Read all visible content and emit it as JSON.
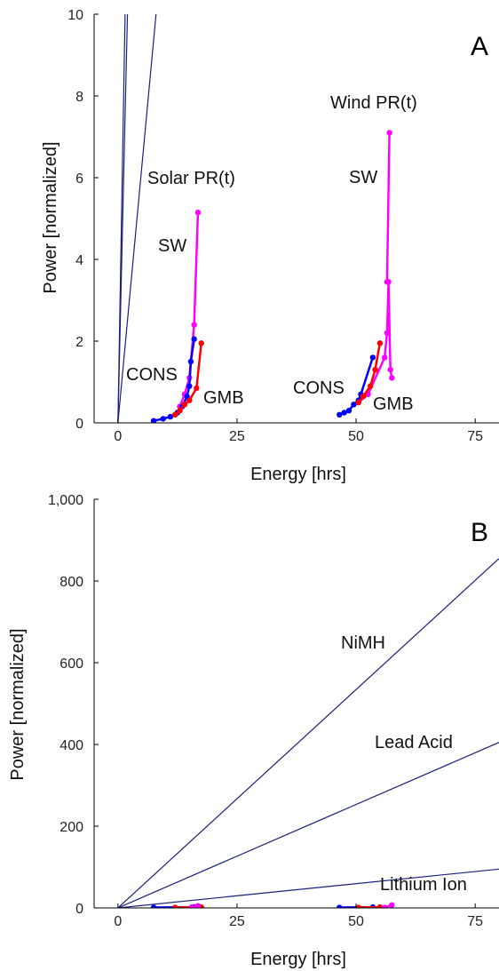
{
  "colors": {
    "line": "#1a1f7a",
    "cons": "#0000ff",
    "gmb": "#ff0000",
    "sw": "#ff00ff",
    "axis": "#000000"
  },
  "chart_data": [
    {
      "panel": "A",
      "type": "line",
      "xlabel": "Energy [hrs]",
      "ylabel": "Power [normalized]",
      "xlim": [
        -5,
        80
      ],
      "ylim": [
        0,
        10
      ],
      "xticks": [
        0,
        25,
        50,
        75
      ],
      "yticks": [
        0,
        2,
        4,
        6,
        8,
        10
      ],
      "grid": false,
      "ref_lines": [
        {
          "x": [
            0,
            1.5
          ],
          "y": [
            0,
            10
          ]
        },
        {
          "x": [
            0,
            2.0
          ],
          "y": [
            0,
            10
          ]
        },
        {
          "x": [
            0,
            8.0
          ],
          "y": [
            0,
            10
          ]
        }
      ],
      "series": [
        {
          "name": "SW",
          "color_key": "sw",
          "x": [
            12.5,
            13.0,
            14.0,
            15.0,
            16.0,
            16.8
          ],
          "y": [
            0.25,
            0.4,
            0.7,
            1.1,
            2.4,
            5.15
          ]
        },
        {
          "name": "CONS",
          "color_key": "cons",
          "x": [
            7.5,
            9.5,
            11.0,
            12.5,
            13.5,
            14.5,
            15.0,
            15.3,
            16.0
          ],
          "y": [
            0.05,
            0.1,
            0.15,
            0.25,
            0.4,
            0.65,
            0.9,
            1.5,
            2.05
          ]
        },
        {
          "name": "GMB",
          "color_key": "gmb",
          "x": [
            12.0,
            13.0,
            14.0,
            15.0,
            16.5,
            17.5
          ],
          "y": [
            0.2,
            0.3,
            0.45,
            0.55,
            0.85,
            1.95
          ]
        },
        {
          "name": "SW",
          "color_key": "sw",
          "x": [
            50.5,
            52.5,
            56.0,
            56.5,
            56.8,
            57.2,
            57.5
          ],
          "y": [
            0.5,
            0.7,
            1.6,
            2.2,
            3.45,
            1.3,
            1.1
          ]
        },
        {
          "name": "CONS",
          "color_key": "cons",
          "x": [
            46.5,
            47.5,
            48.5,
            49.5,
            50.5,
            51.0,
            53.5
          ],
          "y": [
            0.2,
            0.25,
            0.3,
            0.45,
            0.55,
            0.7,
            1.6
          ]
        },
        {
          "name": "GMB",
          "color_key": "gmb",
          "x": [
            50.5,
            51.5,
            53.0,
            54.0,
            55.0
          ],
          "y": [
            0.5,
            0.65,
            0.9,
            1.3,
            1.95
          ]
        },
        {
          "name": "SW",
          "color_key": "sw",
          "x": [
            56.5,
            57.0
          ],
          "y": [
            3.45,
            7.1
          ]
        }
      ],
      "annotations": [
        "Solar PR(t)",
        "Wind PR(t)",
        "SW",
        "SW",
        "CONS",
        "CONS",
        "GMB",
        "GMB"
      ]
    },
    {
      "panel": "B",
      "type": "line",
      "xlabel": "Energy [hrs]",
      "ylabel": "Power [normalized]",
      "xlim": [
        -5,
        80
      ],
      "ylim": [
        0,
        1000
      ],
      "xticks": [
        0,
        25,
        50,
        75
      ],
      "yticks": [
        0,
        200,
        400,
        600,
        800,
        1000
      ],
      "ytick_labels": [
        "0",
        "200",
        "400",
        "600",
        "800",
        "1,000"
      ],
      "grid": false,
      "ref_lines": [
        {
          "name": "NiMH",
          "x": [
            0,
            80
          ],
          "y": [
            0,
            855
          ]
        },
        {
          "name": "Lead Acid",
          "x": [
            0,
            80
          ],
          "y": [
            0,
            405
          ]
        },
        {
          "name": "Lithium Ion",
          "x": [
            0,
            80
          ],
          "y": [
            0,
            95
          ]
        }
      ],
      "series": [
        {
          "color_key": "cons",
          "x": [
            7.5,
            16.0
          ],
          "y": [
            1,
            2
          ]
        },
        {
          "color_key": "gmb",
          "x": [
            12.0,
            17.5
          ],
          "y": [
            1,
            2
          ]
        },
        {
          "color_key": "sw",
          "x": [
            15.5,
            16.8
          ],
          "y": [
            2,
            5
          ]
        },
        {
          "color_key": "cons",
          "x": [
            46.5,
            53.5
          ],
          "y": [
            1,
            2
          ]
        },
        {
          "color_key": "gmb",
          "x": [
            50.5,
            55.0
          ],
          "y": [
            1,
            2
          ]
        },
        {
          "color_key": "sw",
          "x": [
            56.0,
            57.5
          ],
          "y": [
            1,
            7
          ]
        }
      ],
      "annotations": [
        "NiMH",
        "Lead Acid",
        "Lithium Ion"
      ]
    }
  ]
}
